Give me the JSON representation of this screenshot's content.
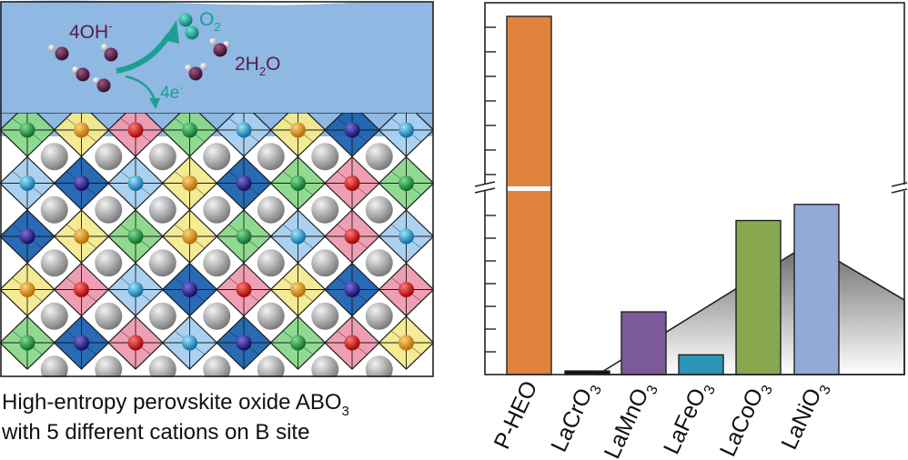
{
  "left_panel": {
    "reaction": {
      "reactant": "4OH",
      "reactant_charge": "-",
      "product_gas": "O",
      "product_gas_sub": "2",
      "water_coef": "2H",
      "water_sub": "2",
      "water_tail": "O",
      "electrons": "4e",
      "electrons_charge": "-"
    },
    "caption_line1": "High-entropy perovskite oxide ABO",
    "caption_line1_sub": "3",
    "caption_line2": "with 5 different cations on B site",
    "lattice_cation_colors": {
      "green": "#8ad88a",
      "blue": "#1c62b0",
      "light_blue": "#a7cff0",
      "pink": "#ee9ab0",
      "yellow": "#f3ea8e"
    }
  },
  "chart_data": {
    "type": "bar",
    "categories": [
      "P-HEO",
      "LaCrO3",
      "LaMnO3",
      "LaFeO3",
      "LaCoO3",
      "LaNiO3"
    ],
    "category_labels": [
      {
        "main": "P-HEO",
        "sub": ""
      },
      {
        "main": "LaCrO",
        "sub": "3"
      },
      {
        "main": "LaMnO",
        "sub": "3"
      },
      {
        "main": "LaFeO",
        "sub": "3"
      },
      {
        "main": "LaCoO",
        "sub": "3"
      },
      {
        "main": "LaNiO",
        "sub": "3"
      }
    ],
    "values": [
      100,
      1,
      17.5,
      5.5,
      43,
      47.5
    ],
    "colors": [
      "#df833d",
      "#111111",
      "#7a5a9a",
      "#2b95b8",
      "#87a84f",
      "#93a9d6"
    ],
    "axis_break": true,
    "title": "",
    "xlabel": "",
    "ylabel": "",
    "ylim": [
      0,
      100
    ],
    "background_trend": "volcano"
  }
}
